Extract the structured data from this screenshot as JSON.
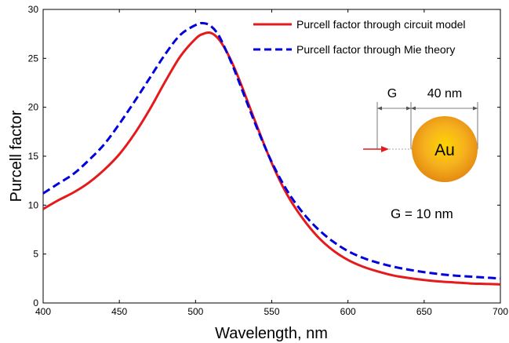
{
  "chart_data": {
    "type": "line",
    "xlabel": "Wavelength, nm",
    "ylabel": "Purcell factor",
    "xlim": [
      400,
      700
    ],
    "ylim": [
      0,
      30
    ],
    "xticks": [
      400,
      450,
      500,
      550,
      600,
      650,
      700
    ],
    "yticks": [
      0,
      5,
      10,
      15,
      20,
      25,
      30
    ],
    "grid": false,
    "legend_position": "top-right",
    "x": [
      400,
      410,
      420,
      430,
      440,
      450,
      460,
      470,
      480,
      490,
      500,
      505,
      510,
      515,
      520,
      525,
      530,
      540,
      550,
      560,
      570,
      580,
      590,
      600,
      610,
      620,
      630,
      640,
      650,
      660,
      670,
      680,
      690,
      700
    ],
    "series": [
      {
        "name": "Purcell factor through circuit model",
        "color": "#e41a1c",
        "style": "solid",
        "values": [
          9.6,
          10.5,
          11.3,
          12.3,
          13.6,
          15.2,
          17.3,
          19.8,
          22.6,
          25.2,
          27.0,
          27.5,
          27.6,
          27.0,
          25.8,
          24.2,
          22.3,
          18.2,
          14.3,
          11.1,
          8.7,
          6.8,
          5.4,
          4.4,
          3.7,
          3.2,
          2.8,
          2.55,
          2.35,
          2.2,
          2.1,
          2.0,
          1.95,
          1.9
        ]
      },
      {
        "name": "Purcell factor through Mie theory",
        "color": "#0000dd",
        "style": "dashed",
        "values": [
          11.2,
          12.2,
          13.2,
          14.6,
          16.2,
          18.3,
          20.6,
          23.0,
          25.4,
          27.4,
          28.4,
          28.6,
          28.3,
          27.4,
          25.8,
          24.0,
          22.0,
          18.0,
          14.4,
          11.5,
          9.3,
          7.6,
          6.3,
          5.3,
          4.6,
          4.1,
          3.7,
          3.4,
          3.15,
          2.95,
          2.8,
          2.7,
          2.6,
          2.5
        ]
      }
    ],
    "inset": {
      "particle_label": "Au",
      "gap_label": "G",
      "diameter_label": "40 nm",
      "particle_color": "#f0a020",
      "arrow_color": "#e41a1c"
    },
    "annotation": "G = 10 nm"
  }
}
